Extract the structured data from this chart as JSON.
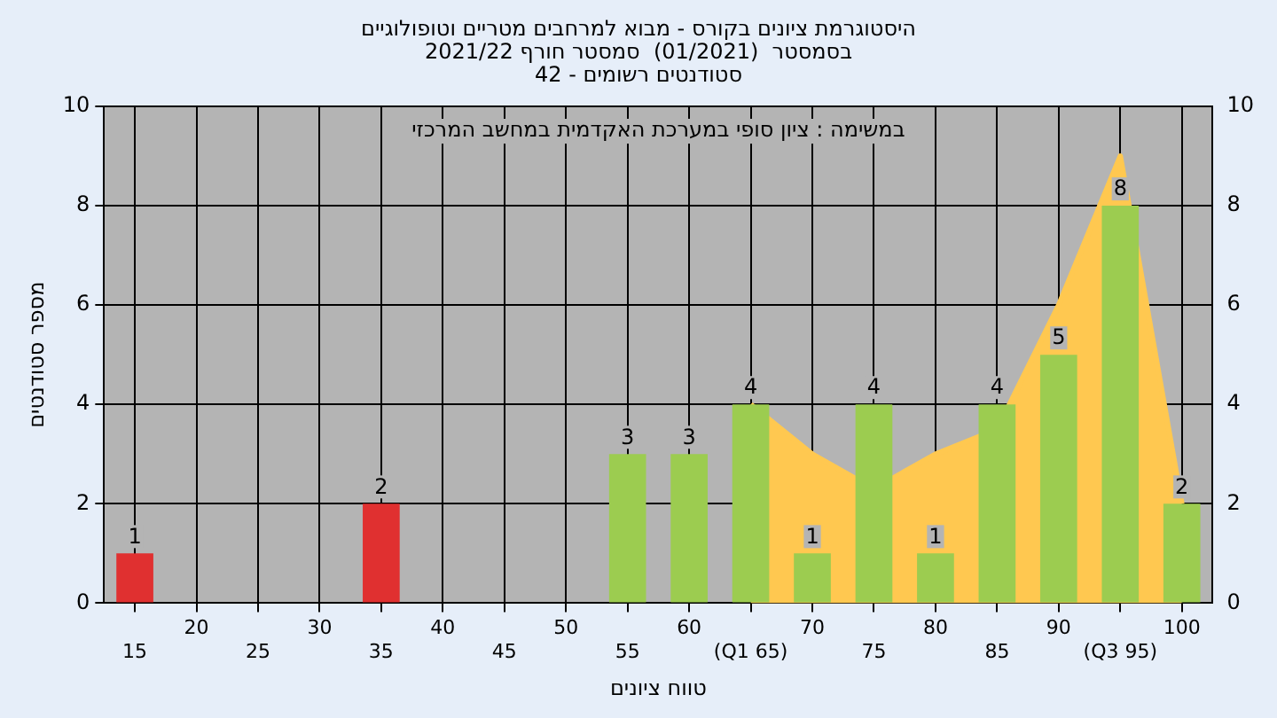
{
  "chart_data": {
    "type": "bar",
    "title": "היסטוגרמת ציונים בקורס - מבוא למרחבים מטריים וטופולוגיים",
    "subtitle": "בסמסטר  (01/2021)  סמסטר חורף 2021/22\nסטודנטים רשומים - 42",
    "xlabel": "טווח ציונים",
    "ylabel": "מספר סטודנטים",
    "annotations": [
      "במשימה : ציון סופי במערכת האקדמית במחשב המרכזי"
    ],
    "categories": [
      "15",
      "20",
      "25",
      "30",
      "35",
      "40",
      "45",
      "50",
      "55",
      "60",
      "(Q1 65)",
      "70",
      "75",
      "80",
      "85",
      "90",
      "(Q3 95)",
      "100"
    ],
    "series": [
      {
        "values": [
          1,
          0,
          0,
          0,
          2,
          0,
          0,
          0,
          3,
          3,
          4,
          1,
          4,
          1,
          4,
          5,
          8,
          2
        ],
        "value_labels": [
          "1",
          null,
          null,
          null,
          "2",
          null,
          null,
          null,
          "3",
          "3",
          "4",
          "1",
          "4",
          "1",
          "4",
          "5",
          "8",
          "2"
        ],
        "colors": [
          "#e03030",
          "#9ccc50",
          "#9ccc50",
          "#9ccc50",
          "#e03030",
          "#9ccc50",
          "#9ccc50",
          "#9ccc50",
          "#9ccc50",
          "#9ccc50",
          "#9ccc50",
          "#9ccc50",
          "#9ccc50",
          "#9ccc50",
          "#9ccc50",
          "#9ccc50",
          "#9ccc50",
          "#9ccc50"
        ]
      },
      {
        "type": "area",
        "color": "#ffc850",
        "values": [
          null,
          null,
          null,
          null,
          null,
          null,
          null,
          null,
          null,
          null,
          4,
          3,
          2.3,
          3,
          3.5,
          6,
          9,
          2
        ]
      }
    ],
    "ylim": [
      0,
      10
    ],
    "yticks": [
      0,
      2,
      4,
      6,
      8,
      10
    ],
    "y2lim": [
      0,
      10
    ],
    "y2ticks": [
      0,
      2,
      4,
      6,
      8,
      10
    ],
    "grid": true,
    "legend": false
  }
}
